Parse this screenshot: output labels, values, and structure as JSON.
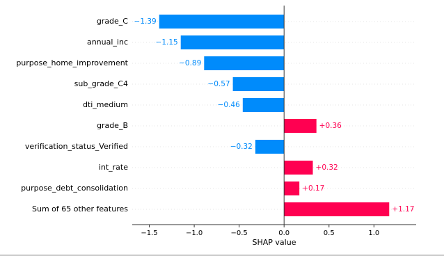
{
  "chart_data": {
    "type": "bar",
    "orientation": "horizontal",
    "x_label": "SHAP value",
    "categories": [
      "grade_C",
      "annual_inc",
      "purpose_home_improvement",
      "sub_grade_C4",
      "dti_medium",
      "grade_B",
      "verification_status_Verified",
      "int_rate",
      "purpose_debt_consolidation",
      "Sum of 65 other features"
    ],
    "values": [
      -1.39,
      -1.15,
      -0.89,
      -0.57,
      -0.46,
      0.36,
      -0.32,
      0.32,
      0.17,
      1.17
    ],
    "value_labels": [
      "−1.39",
      "−1.15",
      "−0.89",
      "−0.57",
      "−0.46",
      "+0.36",
      "−0.32",
      "+0.32",
      "+0.17",
      "+1.17"
    ],
    "positive_color": "#ff0051",
    "negative_color": "#008bfb",
    "xlim": [
      -1.69,
      1.47
    ],
    "xticks": [
      {
        "value": -1.5,
        "label": "−1.5"
      },
      {
        "value": -1.0,
        "label": "−1.0"
      },
      {
        "value": -0.5,
        "label": "−0.5"
      },
      {
        "value": 0.0,
        "label": "0.0"
      },
      {
        "value": 0.5,
        "label": "0.5"
      },
      {
        "value": 1.0,
        "label": "1.0"
      }
    ],
    "grid": true
  }
}
